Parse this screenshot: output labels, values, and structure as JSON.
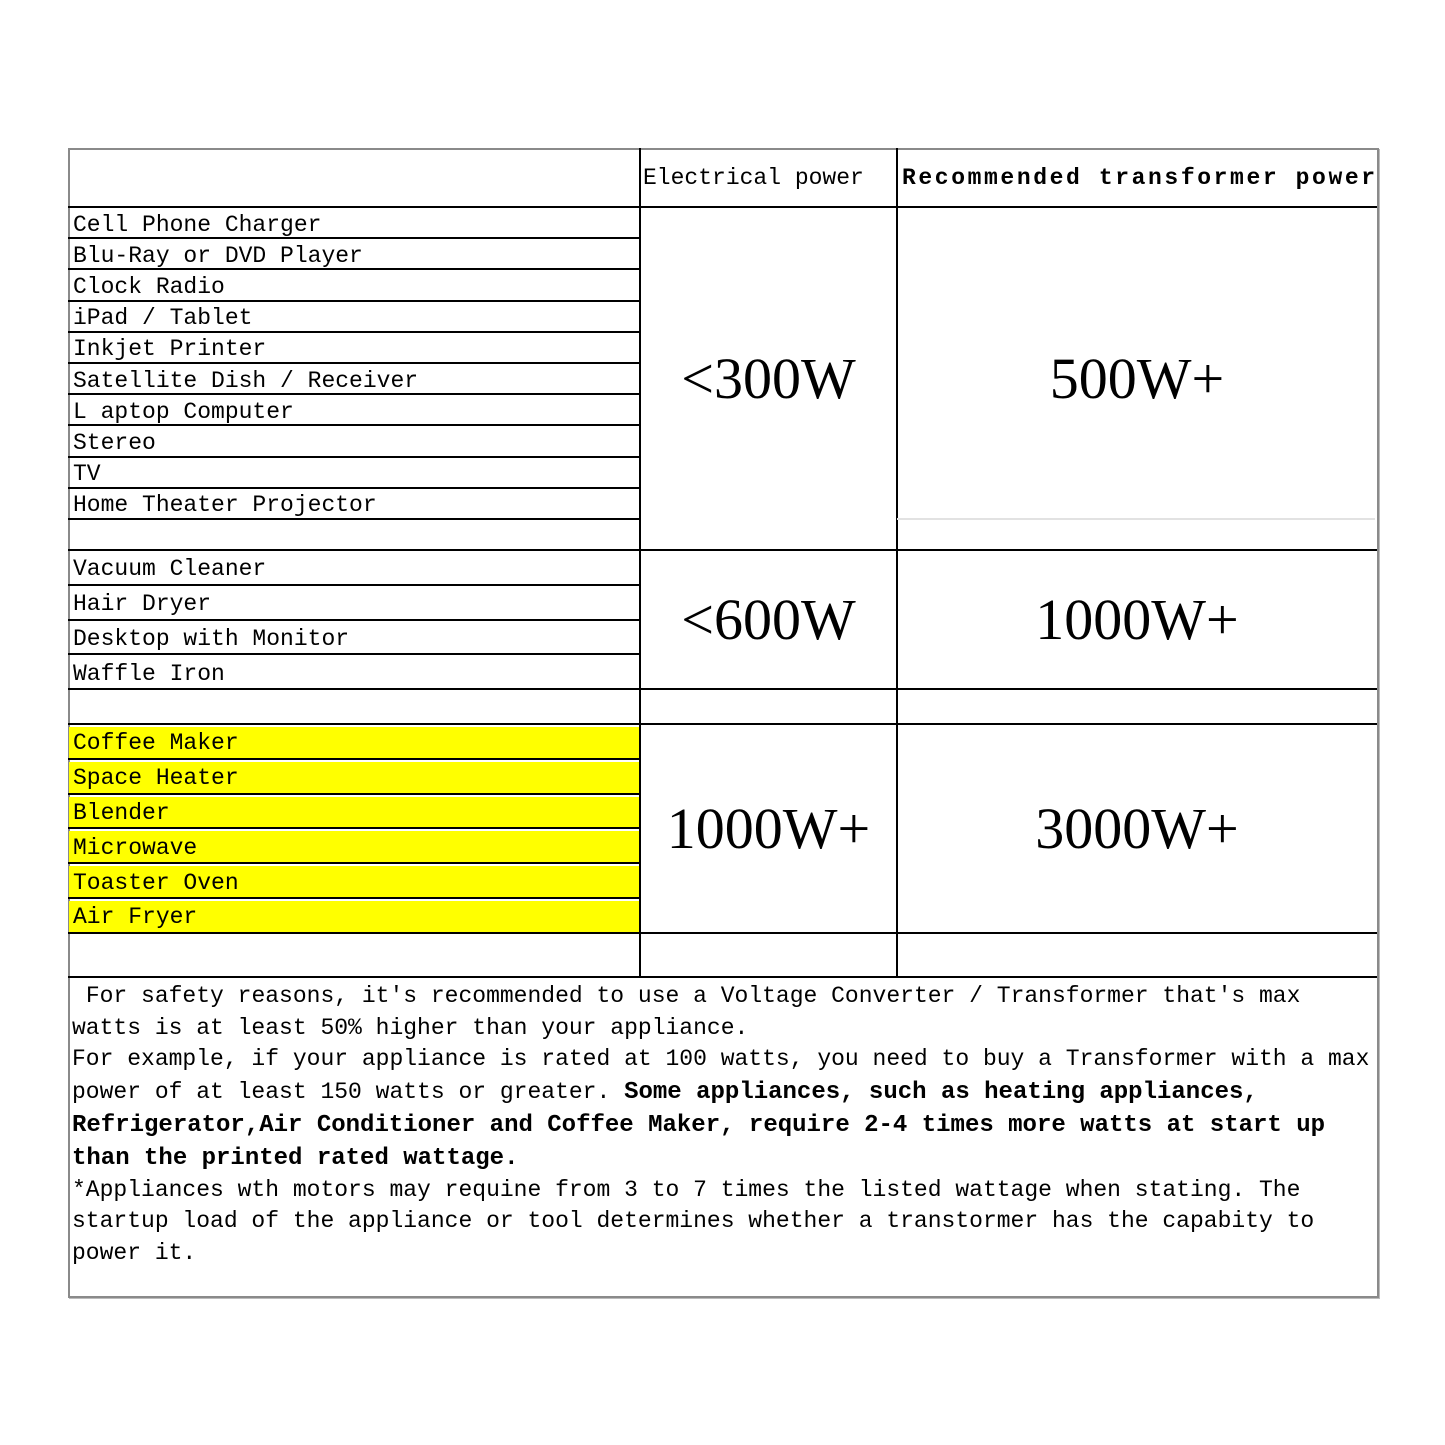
{
  "header": {
    "power": "Electrical power",
    "transformer": "Recommended transformer power"
  },
  "groups": [
    {
      "items": [
        "Cell Phone Charger",
        "Blu-Ray or DVD Player",
        "Clock Radio",
        "iPad / Tablet",
        "Inkjet Printer",
        "Satellite Dish / Receiver",
        "L aptop Computer",
        "Stereo",
        "TV",
        "Home Theater Projector"
      ],
      "power": "<300W",
      "transformer": "500W+"
    },
    {
      "items": [
        "Vacuum Cleaner",
        "Hair Dryer",
        "Desktop with Monitor",
        "Waffle Iron"
      ],
      "power": "<600W",
      "transformer": "1000W+"
    },
    {
      "items": [
        "Coffee Maker",
        "Space Heater",
        "Blender",
        "Microwave",
        "Toaster Oven",
        "Air Fryer"
      ],
      "power": "1000W+",
      "transformer": "3000W+",
      "highlight": "#ffff00"
    }
  ],
  "note": {
    "intro": " For safety reasons, it's recommended to use a Voltage Converter / Transformer that's max watts is at least 50% higher than your appliance.",
    "example": "For example, if your appliance is rated at 100 watts, you need to buy a Transformer with a max power of at least 150 watts or greater. ",
    "bold": "Some appliances, such as heating appliances, Refrigerator,Air Conditioner and Coffee Maker, require 2-4 times more watts at start up than the printed rated wattage.",
    "motors": "*Appliances wth motors may requine from 3 to 7 times the listed wattage when stating. The startup load of the appliance or tool determines whether a transtormer has the capabity to power it."
  }
}
